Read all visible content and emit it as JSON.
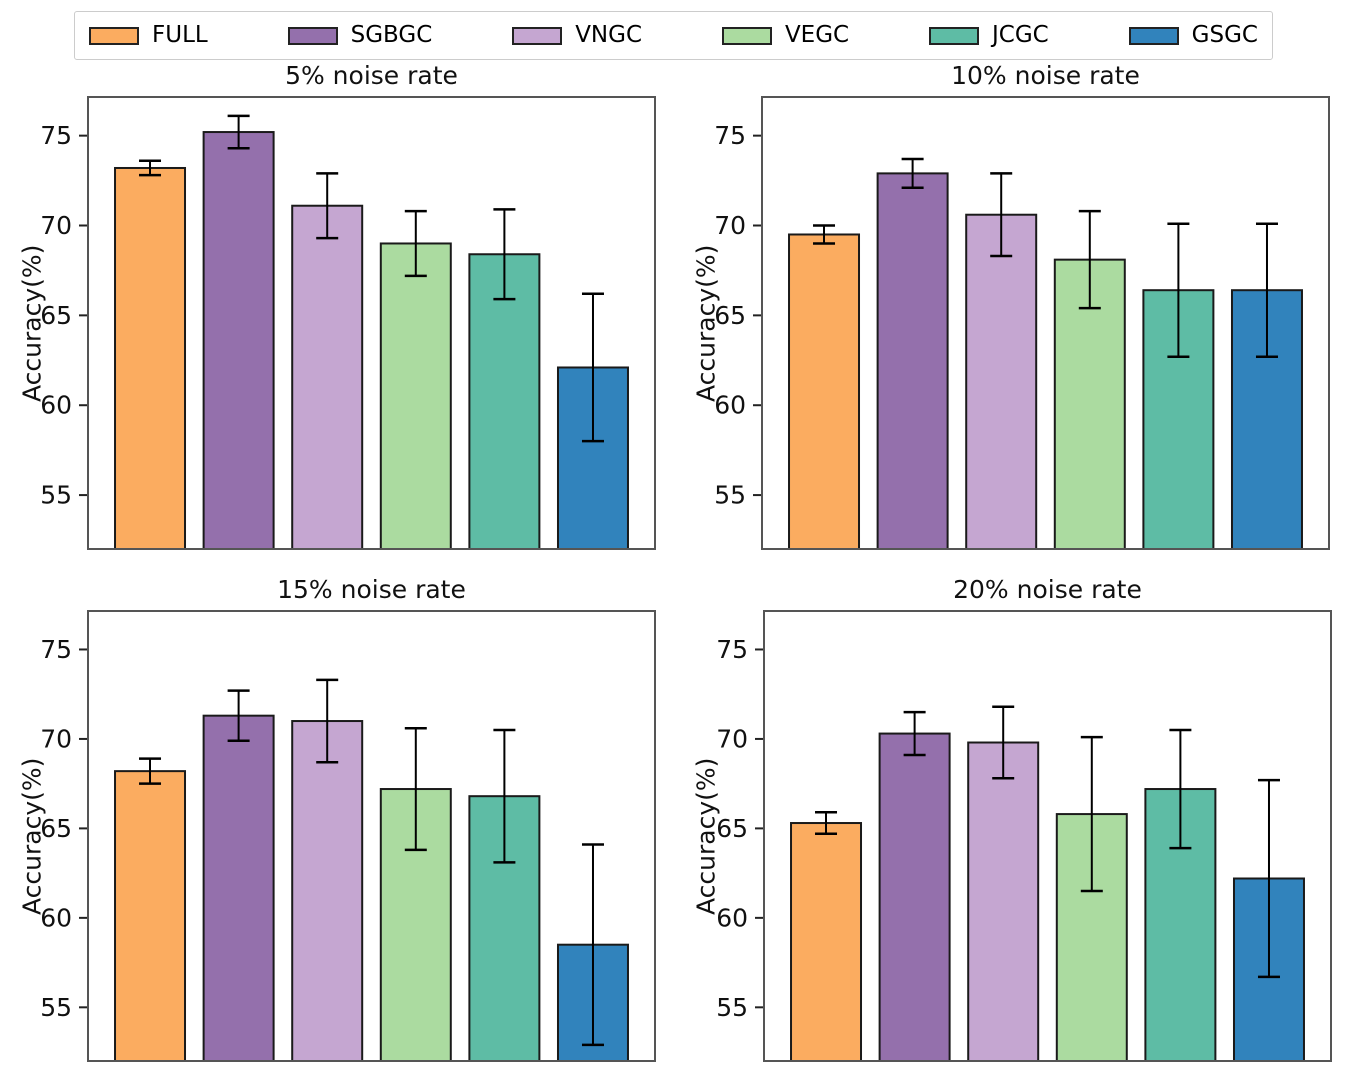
{
  "legend": {
    "items": [
      {
        "label": "FULL",
        "color": "#FBAC60"
      },
      {
        "label": "SGBGC",
        "color": "#9470AC"
      },
      {
        "label": "VNGC",
        "color": "#C5A6D1"
      },
      {
        "label": "VEGC",
        "color": "#ABDBA0"
      },
      {
        "label": "JCGC",
        "color": "#5EBCA5"
      },
      {
        "label": "GSGC",
        "color": "#3183BC"
      }
    ],
    "border_color": "#cccccc"
  },
  "style": {
    "bar_edge_color": "#1a1a1a",
    "errorbar_color": "#000000",
    "spine_color": "#555555",
    "tick_color": "#222222"
  },
  "chart_data": [
    {
      "type": "bar",
      "title": "5% noise rate",
      "xlabel": "",
      "ylabel": "Accuracy(%)",
      "categories": [
        "FULL",
        "SGBGC",
        "VNGC",
        "VEGC",
        "JCGC",
        "GSGC"
      ],
      "values": [
        73.2,
        75.2,
        71.1,
        69.0,
        68.4,
        62.1
      ],
      "errors": [
        0.4,
        0.9,
        1.8,
        1.8,
        2.5,
        4.1
      ],
      "yticks": [
        55,
        60,
        65,
        70,
        75
      ],
      "ylim": [
        52.0,
        77.15
      ],
      "grid": false,
      "legend_position": "top"
    },
    {
      "type": "bar",
      "title": "10% noise rate",
      "xlabel": "",
      "ylabel": "Accuracy(%)",
      "categories": [
        "FULL",
        "SGBGC",
        "VNGC",
        "VEGC",
        "JCGC",
        "GSGC"
      ],
      "values": [
        69.5,
        72.9,
        70.6,
        68.1,
        66.4,
        66.4
      ],
      "errors": [
        0.5,
        0.8,
        2.3,
        2.7,
        3.7,
        3.7
      ],
      "yticks": [
        55,
        60,
        65,
        70,
        75
      ],
      "ylim": [
        52.0,
        77.15
      ],
      "grid": false,
      "legend_position": "top"
    },
    {
      "type": "bar",
      "title": "15% noise rate",
      "xlabel": "",
      "ylabel": "Accuracy(%)",
      "categories": [
        "FULL",
        "SGBGC",
        "VNGC",
        "VEGC",
        "JCGC",
        "GSGC"
      ],
      "values": [
        68.2,
        71.3,
        71.0,
        67.2,
        66.8,
        58.5
      ],
      "errors": [
        0.7,
        1.4,
        2.3,
        3.4,
        3.7,
        5.6
      ],
      "yticks": [
        55,
        60,
        65,
        70,
        75
      ],
      "ylim": [
        52.0,
        77.15
      ],
      "grid": false,
      "legend_position": "top"
    },
    {
      "type": "bar",
      "title": "20% noise rate",
      "xlabel": "",
      "ylabel": "Accuracy(%)",
      "categories": [
        "FULL",
        "SGBGC",
        "VNGC",
        "VEGC",
        "JCGC",
        "GSGC"
      ],
      "values": [
        65.3,
        70.3,
        69.8,
        65.8,
        67.2,
        62.2
      ],
      "errors": [
        0.6,
        1.2,
        2.0,
        4.3,
        3.3,
        5.5
      ],
      "yticks": [
        55,
        60,
        65,
        70,
        75
      ],
      "ylim": [
        52.0,
        77.15
      ],
      "grid": false,
      "legend_position": "top"
    }
  ]
}
